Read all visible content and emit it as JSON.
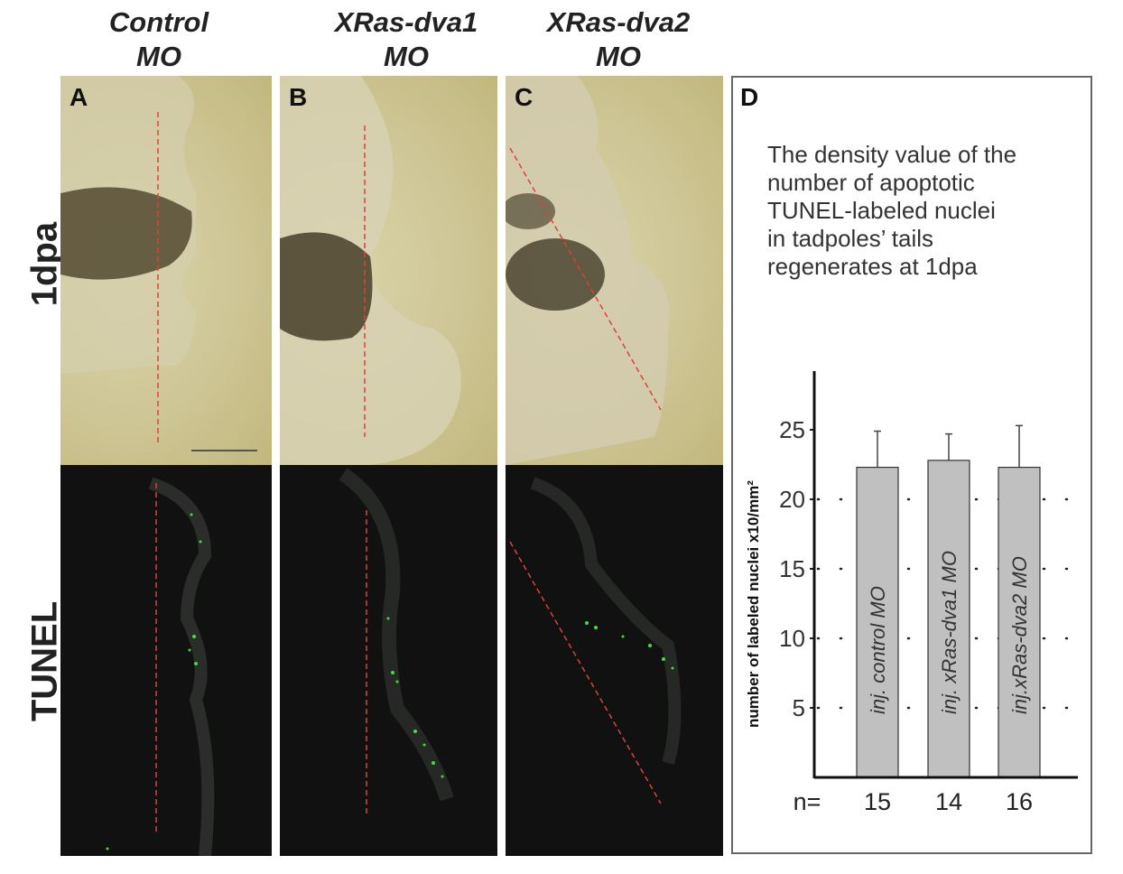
{
  "columns": [
    {
      "line1": "Control",
      "line2": "MO"
    },
    {
      "line1": "XRas-dva1",
      "line2": "MO"
    },
    {
      "line1": "XRas-dva2",
      "line2": "MO"
    }
  ],
  "rows": [
    "1dpa",
    "TUNEL"
  ],
  "panels": [
    "A",
    "B",
    "C",
    "D"
  ],
  "panel_d_text": [
    "The density value of the",
    "number of apoptotic",
    "TUNEL-labeled nuclei",
    "in tadpoles’ tails",
    "regenerates at 1dpa"
  ],
  "colors": {
    "bar": "#c0c0c0",
    "dashed_line": "#e0403a",
    "tunel": "#3ee03e"
  },
  "chart_data": {
    "type": "bar",
    "categories": [
      "inj. control MO",
      "inj. xRas-dva1 MO",
      "inj.xRas-dva2 MO"
    ],
    "values": [
      22.3,
      22.8,
      22.3
    ],
    "error_upper": [
      24.9,
      24.7,
      25.3
    ],
    "n_prefix": "n=",
    "n": [
      "15",
      "14",
      "16"
    ],
    "ylabel": "number of labeled nuclei x10/mm²",
    "yticks": [
      "5",
      "10",
      "15",
      "20",
      "25"
    ],
    "ytick_values": [
      5,
      10,
      15,
      20,
      25
    ],
    "ylim": [
      0,
      28
    ],
    "grid": "dotted"
  }
}
